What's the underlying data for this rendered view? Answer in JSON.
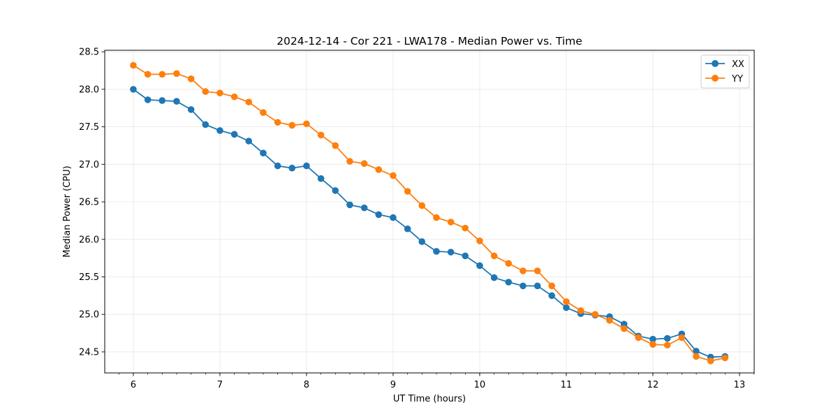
{
  "chart_data": {
    "type": "line",
    "title": "2024-12-14 - Cor 221 - LWA178 - Median Power vs. Time",
    "xlabel": "UT Time (hours)",
    "ylabel": "Median Power (CPU)",
    "xlim": [
      5.67,
      13.17
    ],
    "ylim": [
      24.22,
      28.52
    ],
    "x_ticks": [
      6,
      7,
      8,
      9,
      10,
      11,
      12,
      13
    ],
    "x_tick_labels": [
      "6",
      "7",
      "8",
      "9",
      "10",
      "11",
      "12",
      "13"
    ],
    "x_minor_step": 0.1667,
    "y_ticks": [
      24.5,
      25.0,
      25.5,
      26.0,
      26.5,
      27.0,
      27.5,
      28.0,
      28.5
    ],
    "y_tick_labels": [
      "24.5",
      "25.0",
      "25.5",
      "26.0",
      "26.5",
      "27.0",
      "27.5",
      "28.0",
      "28.5"
    ],
    "grid": true,
    "legend_position": "top-right",
    "x": [
      6.0,
      6.167,
      6.333,
      6.5,
      6.667,
      6.833,
      7.0,
      7.167,
      7.333,
      7.5,
      7.667,
      7.833,
      8.0,
      8.167,
      8.333,
      8.5,
      8.667,
      8.833,
      9.0,
      9.167,
      9.333,
      9.5,
      9.667,
      9.833,
      10.0,
      10.167,
      10.333,
      10.5,
      10.667,
      10.833,
      11.0,
      11.167,
      11.333,
      11.5,
      11.667,
      11.833,
      12.0,
      12.167,
      12.333,
      12.5,
      12.667,
      12.833
    ],
    "series": [
      {
        "name": "XX",
        "color": "#1f77b4",
        "values": [
          28.0,
          27.86,
          27.85,
          27.84,
          27.73,
          27.53,
          27.45,
          27.4,
          27.31,
          27.15,
          26.98,
          26.95,
          26.98,
          26.81,
          26.65,
          26.46,
          26.42,
          26.33,
          26.29,
          26.14,
          25.97,
          25.84,
          25.83,
          25.78,
          25.65,
          25.49,
          25.43,
          25.38,
          25.38,
          25.25,
          25.09,
          25.01,
          24.99,
          24.97,
          24.87,
          24.71,
          24.67,
          24.68,
          24.74,
          24.51,
          24.43,
          24.44
        ]
      },
      {
        "name": "YY",
        "color": "#ff7f0e",
        "values": [
          28.32,
          28.2,
          28.2,
          28.21,
          28.14,
          27.97,
          27.95,
          27.9,
          27.83,
          27.69,
          27.56,
          27.52,
          27.54,
          27.39,
          27.25,
          27.04,
          27.01,
          26.93,
          26.85,
          26.64,
          26.45,
          26.29,
          26.23,
          26.15,
          25.98,
          25.78,
          25.68,
          25.58,
          25.58,
          25.38,
          25.17,
          25.05,
          25.0,
          24.92,
          24.81,
          24.69,
          24.6,
          24.59,
          24.69,
          24.44,
          24.38,
          24.42
        ]
      }
    ]
  }
}
